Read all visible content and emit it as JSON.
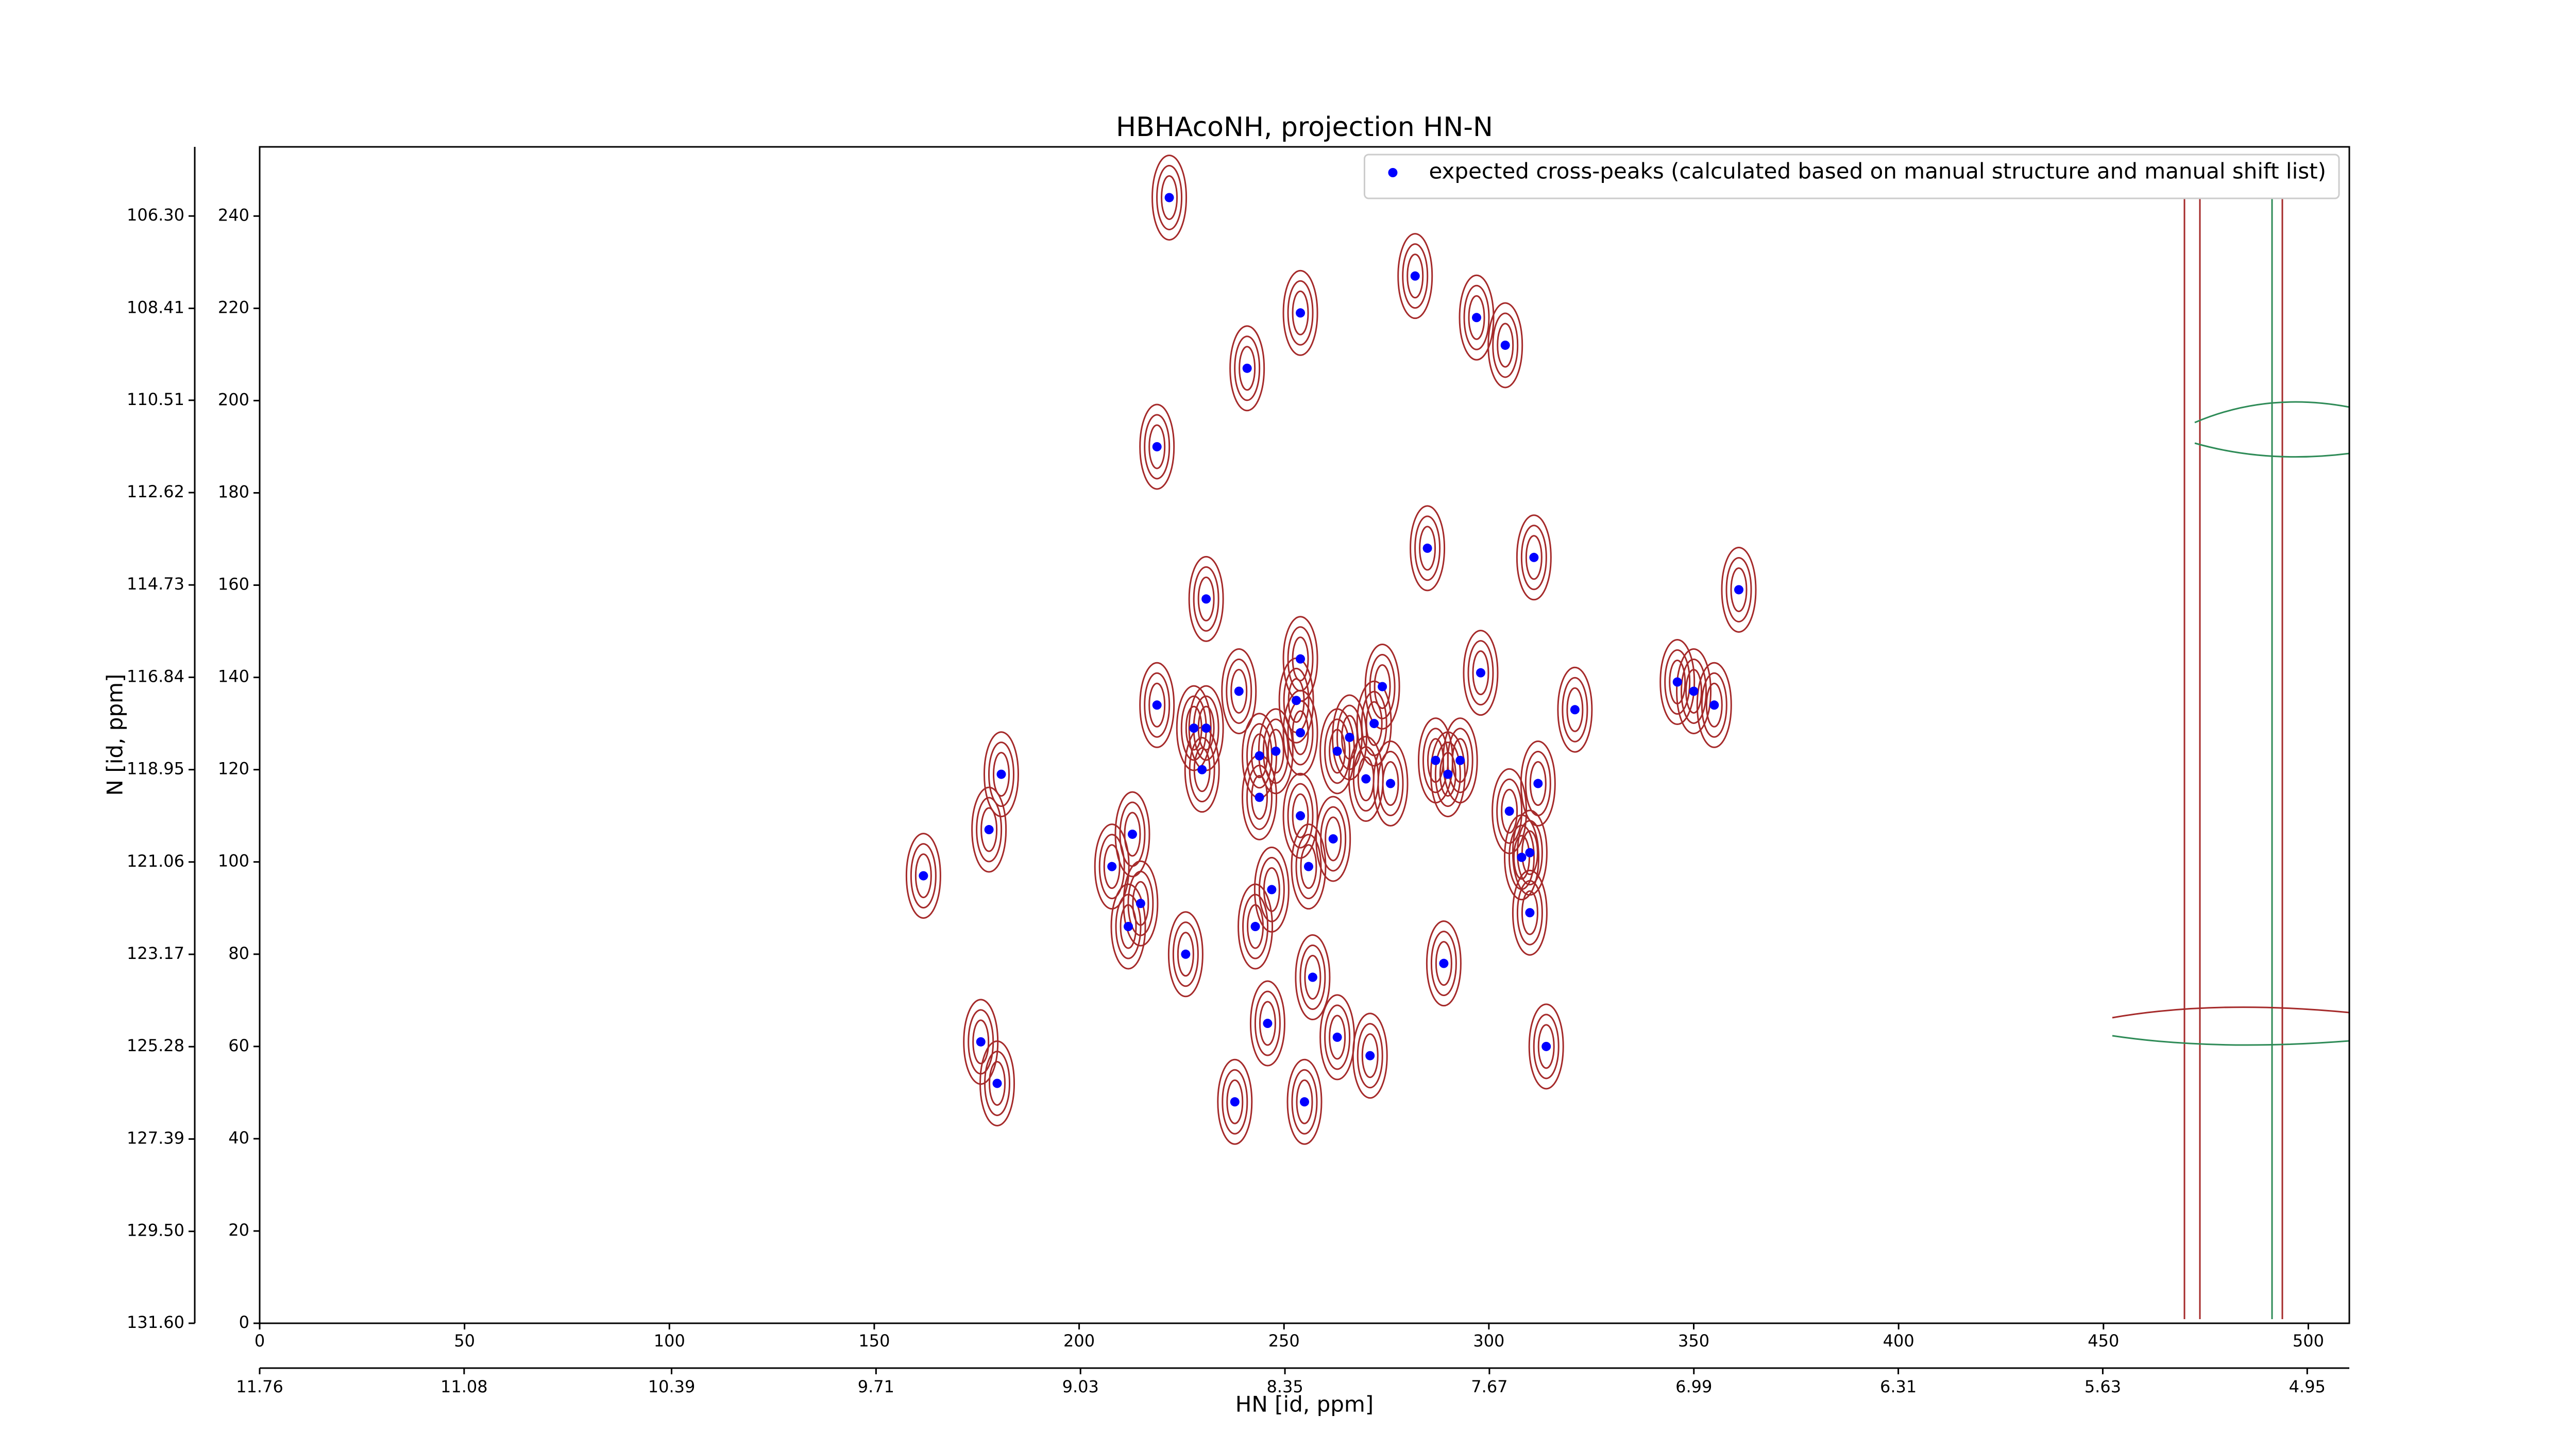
{
  "chart_data": {
    "type": "scatter",
    "title": "HBHAcoNH, projection HN-N",
    "x_label": "HN [id, ppm]",
    "y_label": "N [id, ppm]",
    "legend_loc": "upper right",
    "contour_color": "#a52a2a",
    "xlim": [
      0,
      510
    ],
    "xticks": [
      0,
      50,
      100,
      150,
      200,
      250,
      300,
      350,
      400,
      450,
      500
    ],
    "x2lim": [
      11.76,
      4.81
    ],
    "x2ticks": [
      11.76,
      11.08,
      10.39,
      9.71,
      9.03,
      8.35,
      7.67,
      6.99,
      6.31,
      5.63,
      4.95
    ],
    "ylim": [
      0,
      255
    ],
    "yticks": [
      0,
      20,
      40,
      60,
      80,
      100,
      120,
      140,
      160,
      180,
      200,
      220,
      240
    ],
    "y2lim": [
      131.6,
      104.72
    ],
    "y2ticks": [
      {
        "value": 131.6,
        "label": "131.60"
      },
      {
        "value": 129.5,
        "label": "129.50"
      },
      127.39,
      125.28,
      123.17,
      121.06,
      118.95,
      116.84,
      114.73,
      112.62,
      110.51,
      108.41,
      {
        "value": 106.3,
        "label": "106.30"
      }
    ],
    "series": [
      {
        "name": "expected cross-peaks (calculated based on manual structure and manual shift list)",
        "color": "#0000ff",
        "x": [
          222,
          282,
          254,
          297,
          304,
          241,
          219,
          285,
          311,
          231,
          361,
          254,
          298,
          346,
          350,
          355,
          239,
          274,
          253,
          219,
          321,
          272,
          228,
          231,
          254,
          266,
          244,
          248,
          263,
          287,
          293,
          181,
          230,
          290,
          270,
          276,
          312,
          244,
          254,
          305,
          178,
          213,
          262,
          310,
          308,
          208,
          256,
          162,
          247,
          215,
          310,
          212,
          243,
          226,
          289,
          257,
          246,
          176,
          263,
          314,
          271,
          180,
          238,
          255
        ],
        "values": [
          244,
          227,
          219,
          218,
          212,
          207,
          190,
          168,
          166,
          157,
          159,
          144,
          141,
          139,
          137,
          134,
          137,
          138,
          135,
          134,
          133,
          130,
          129,
          129,
          128,
          127,
          123,
          124,
          124,
          122,
          122,
          119,
          120,
          119,
          118,
          117,
          117,
          114,
          110,
          111,
          107,
          106,
          105,
          102,
          101,
          99,
          99,
          97,
          94,
          91,
          89,
          86,
          86,
          80,
          78,
          75,
          65,
          61,
          62,
          60,
          58,
          52,
          48,
          48
        ]
      }
    ]
  }
}
